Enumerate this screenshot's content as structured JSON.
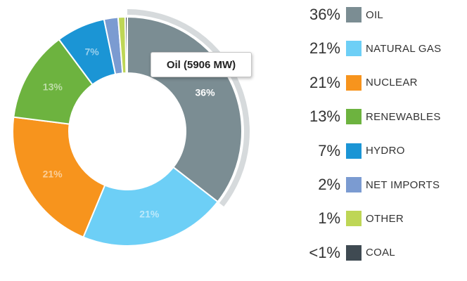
{
  "chart_data": {
    "type": "pie",
    "style": "donut",
    "categories": [
      "OIL",
      "NATURAL GAS",
      "NUCLEAR",
      "RENEWABLES",
      "HYDRO",
      "NET IMPORTS",
      "OTHER",
      "COAL"
    ],
    "values": [
      36,
      21,
      21,
      13,
      7,
      2,
      1,
      0.3
    ],
    "legend_labels": [
      "36%",
      "21%",
      "21%",
      "13%",
      "7%",
      "2%",
      "1%",
      "<1%"
    ],
    "slice_labels": [
      "36%",
      "21%",
      "21%",
      "13%",
      "7%",
      "",
      "",
      ""
    ],
    "colors": [
      "#7b8d93",
      "#6dcff6",
      "#f7941d",
      "#6db33f",
      "#1b95d5",
      "#7b9bd1",
      "#bed656",
      "#3f4a52"
    ],
    "highlighted": "OIL",
    "legend_position": "right"
  },
  "tooltip": {
    "text": "Oil (5906 MW)"
  }
}
